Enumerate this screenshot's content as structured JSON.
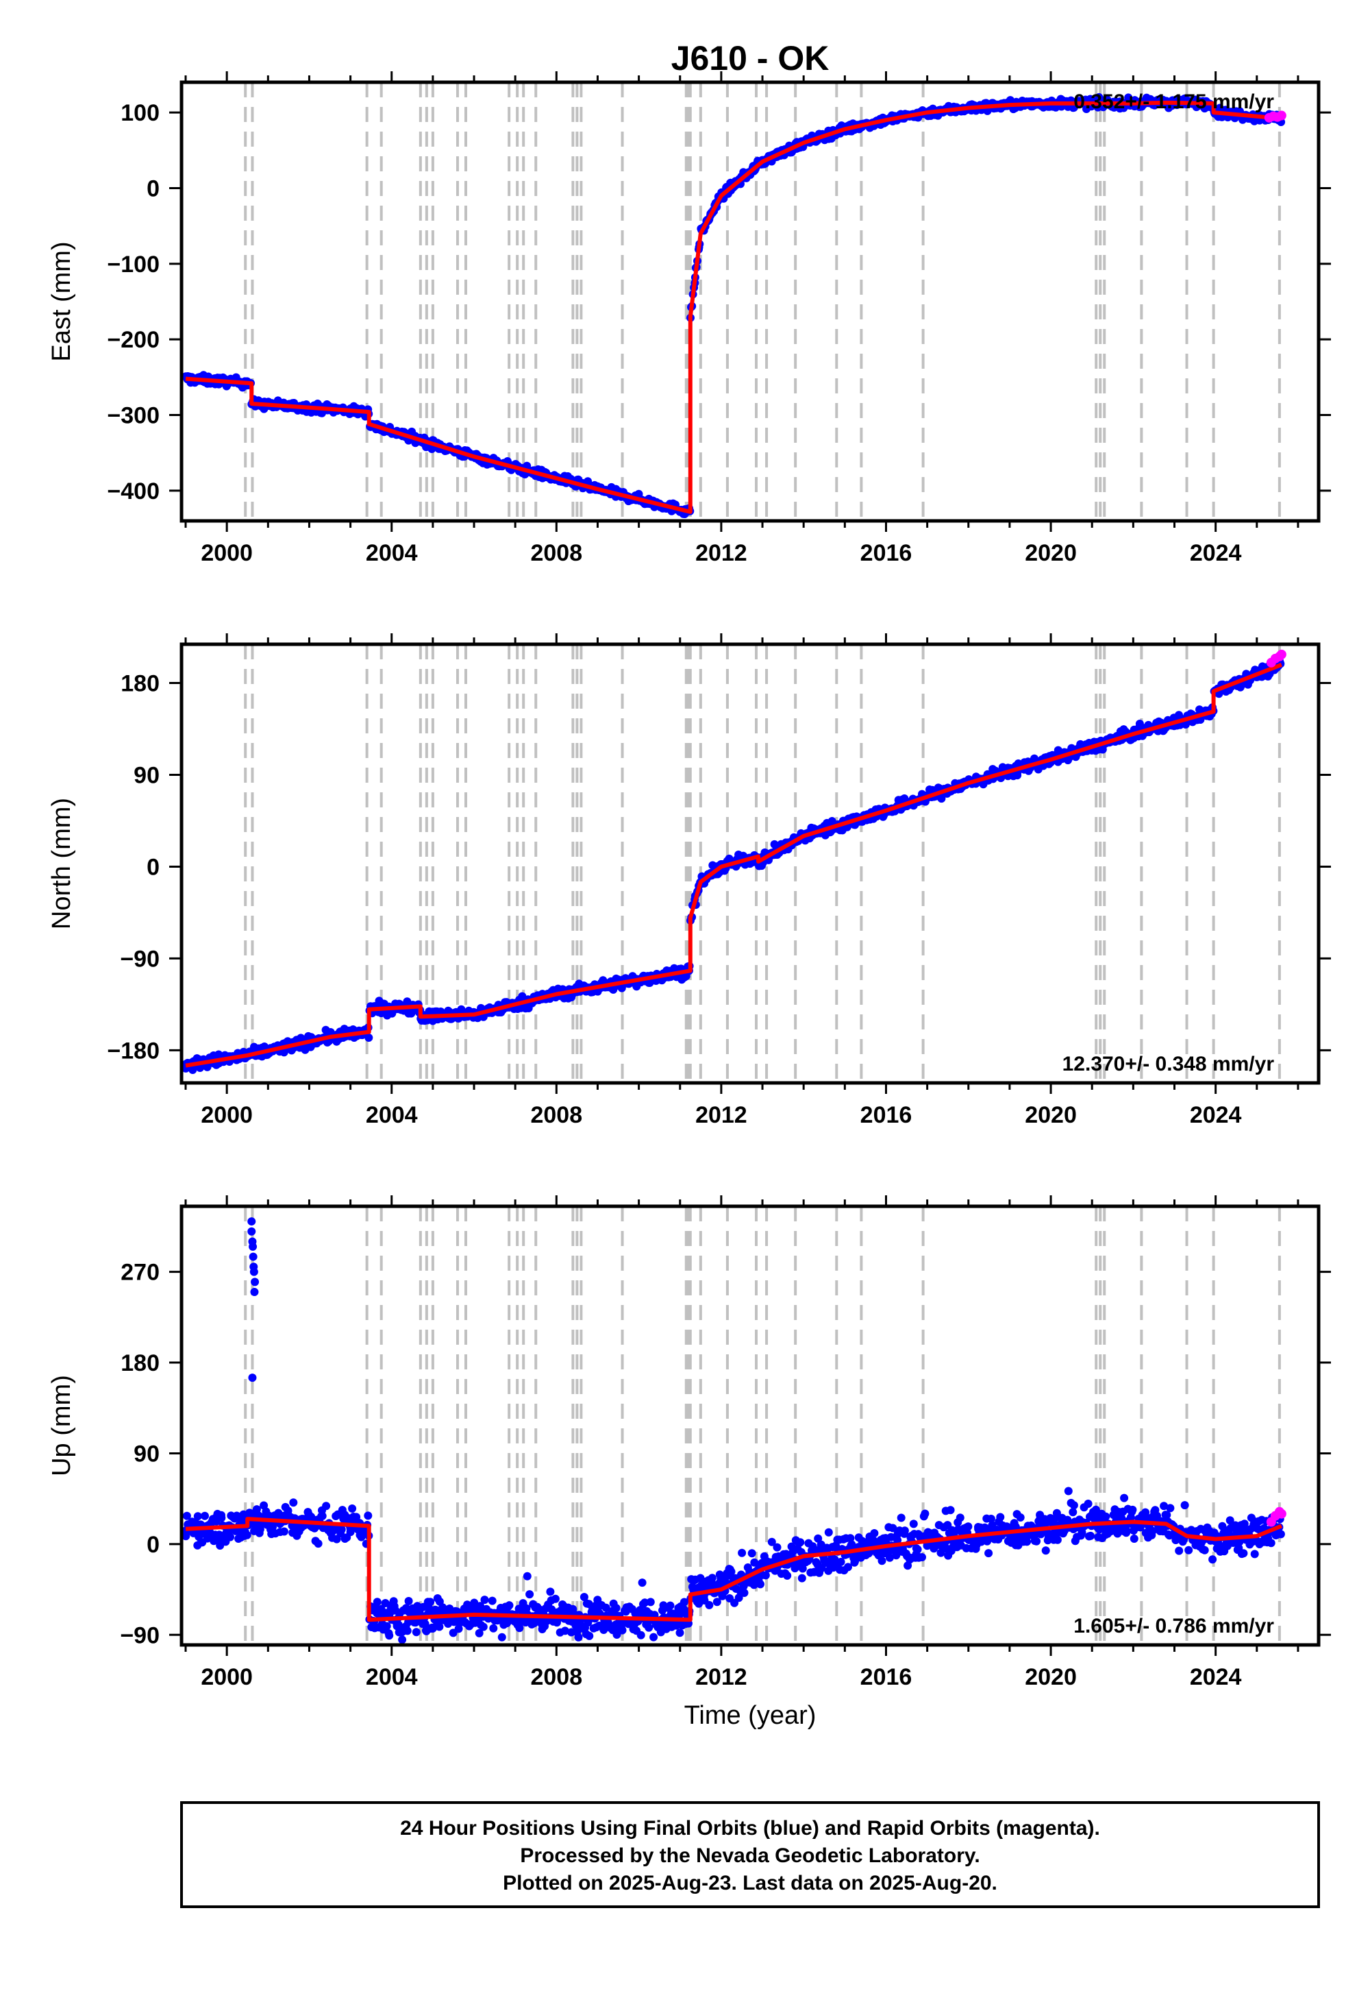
{
  "title": "J610 - OK",
  "xlabel": "Time (year)",
  "x_ticks": [
    2000,
    2004,
    2008,
    2012,
    2016,
    2020,
    2024
  ],
  "xlim": [
    1998.9,
    2026.5
  ],
  "colors": {
    "final": "#0000ff",
    "rapid": "#ff00ff",
    "model": "#ff0000",
    "equipment_change": "#c0c0c0"
  },
  "equipment_changes": [
    2000.45,
    2000.62,
    2003.4,
    2003.75,
    2004.7,
    2004.85,
    2005.0,
    2005.6,
    2005.8,
    2006.85,
    2007.05,
    2007.2,
    2007.5,
    2008.4,
    2008.5,
    2008.6,
    2009.6,
    2011.15,
    2011.2,
    2011.25,
    2011.5,
    2012.15,
    2012.85,
    2013.1,
    2013.8,
    2014.8,
    2015.4,
    2016.9,
    2021.1,
    2021.2,
    2021.3,
    2022.2,
    2023.3,
    2023.95,
    2025.55
  ],
  "chart_data": [
    {
      "type": "scatter",
      "ylabel": "East (mm)",
      "y_ticks": [
        100,
        0,
        -100,
        -200,
        -300,
        -400
      ],
      "ylim": [
        -440,
        140
      ],
      "rate_text": "0.352+/- 1.175 mm/yr",
      "rate_position": "top-right",
      "model_series": {
        "name": "model",
        "x": [
          1999.0,
          2000.6,
          2000.6,
          2002.5,
          2003.45,
          2003.45,
          2006.0,
          2009.0,
          2011.25,
          2011.25,
          2011.5,
          2012.0,
          2013.0,
          2014.0,
          2015.0,
          2016.0,
          2017.0,
          2018.0,
          2019.0,
          2020.0,
          2021.0,
          2022.0,
          2022.8,
          2023.95,
          2023.95,
          2025.6
        ],
        "y": [
          -252,
          -258,
          -285,
          -292,
          -296,
          -312,
          -355,
          -398,
          -428,
          -170,
          -60,
          -10,
          35,
          60,
          78,
          90,
          100,
          106,
          110,
          112,
          112,
          112,
          113,
          112,
          100,
          92
        ]
      },
      "rapid_points": {
        "x": [
          2025.3,
          2025.4,
          2025.5,
          2025.6
        ],
        "y": [
          93,
          95,
          94,
          96
        ]
      }
    },
    {
      "type": "scatter",
      "ylabel": "North (mm)",
      "y_ticks": [
        180,
        90,
        0,
        -90,
        -180
      ],
      "ylim": [
        -212,
        218
      ],
      "rate_text": "12.370+/- 0.348 mm/yr",
      "rate_position": "bottom-right",
      "model_series": {
        "name": "model",
        "x": [
          1999.0,
          2000.5,
          2002.5,
          2003.45,
          2003.45,
          2004.7,
          2004.7,
          2006.0,
          2008.0,
          2011.25,
          2011.25,
          2011.5,
          2012.0,
          2012.9,
          2012.9,
          2014.0,
          2016.0,
          2018.0,
          2020.0,
          2022.0,
          2023.95,
          2023.95,
          2025.6
        ],
        "y": [
          -195,
          -185,
          -167,
          -162,
          -140,
          -137,
          -147,
          -145,
          -125,
          -102,
          -50,
          -15,
          0,
          10,
          5,
          30,
          55,
          82,
          105,
          130,
          152,
          172,
          198
        ]
      },
      "rapid_points": {
        "x": [
          2025.35,
          2025.45,
          2025.55,
          2025.6
        ],
        "y": [
          200,
          204,
          206,
          208
        ]
      }
    },
    {
      "type": "scatter",
      "ylabel": "Up (mm)",
      "y_ticks": [
        270,
        180,
        90,
        0,
        -90
      ],
      "ylim": [
        -100,
        335
      ],
      "rate_text": "1.605+/- 0.786 mm/yr",
      "rate_position": "bottom-right",
      "model_series": {
        "name": "model",
        "x": [
          1999.0,
          2000.5,
          2000.5,
          2003.45,
          2003.45,
          2006.0,
          2008.0,
          2011.25,
          2011.25,
          2012.0,
          2013.0,
          2014.0,
          2015.0,
          2016.0,
          2017.0,
          2018.0,
          2019.0,
          2020.0,
          2021.0,
          2022.0,
          2022.8,
          2023.3,
          2024.0,
          2025.0,
          2025.6
        ],
        "y": [
          15,
          18,
          25,
          18,
          -75,
          -70,
          -72,
          -75,
          -50,
          -45,
          -25,
          -12,
          -8,
          -2,
          3,
          8,
          12,
          16,
          20,
          22,
          20,
          8,
          5,
          8,
          18
        ]
      },
      "outlier_points": {
        "x": [
          2000.6,
          2000.62,
          2000.64,
          2000.66,
          2000.68,
          2000.6,
          2000.63,
          2000.65,
          2000.67,
          2000.62
        ],
        "y": [
          320,
          300,
          285,
          270,
          260,
          310,
          295,
          275,
          250,
          165
        ]
      },
      "rapid_points": {
        "x": [
          2025.35,
          2025.45,
          2025.55,
          2025.6
        ],
        "y": [
          22,
          28,
          32,
          30
        ]
      }
    }
  ],
  "footer": {
    "line1": "24 Hour Positions Using Final Orbits (blue) and Rapid Orbits (magenta).",
    "line2": "Processed by the Nevada Geodetic Laboratory.",
    "line3": "Plotted on 2025-Aug-23. Last data on 2025-Aug-20."
  }
}
